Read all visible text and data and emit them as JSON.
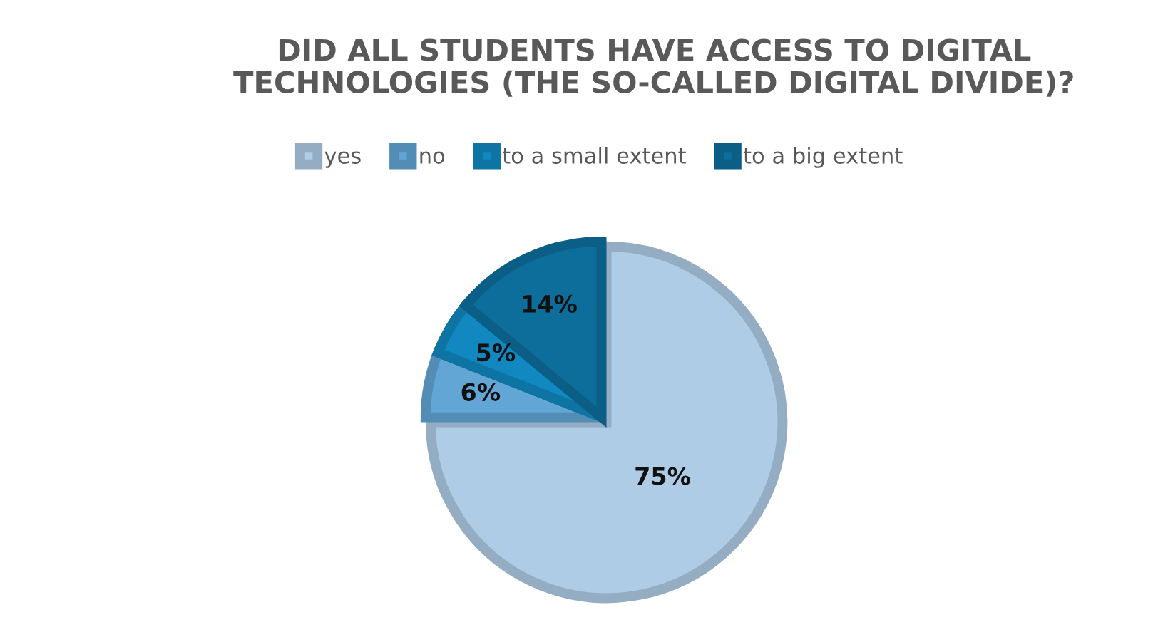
{
  "chart_data": {
    "type": "pie",
    "title": "DID ALL STUDENTS HAVE ACCESS TO DIGITAL\nTECHNOLOGIES (THE SO-CALLED DIGITAL DIVIDE)?",
    "categories": [
      "yes",
      "no",
      "to a small extent",
      "to a big extent"
    ],
    "values": [
      75,
      6,
      5,
      14
    ],
    "colors": [
      "#aecce6",
      "#62a6d6",
      "#1189c0",
      "#0d6e9c"
    ],
    "value_labels": [
      "75%",
      "6%",
      "5%",
      "14%"
    ],
    "legend": "top"
  }
}
